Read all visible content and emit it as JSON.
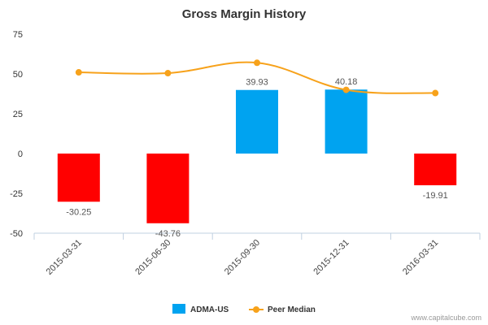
{
  "chart_data": {
    "type": "bar",
    "title": "Gross Margin History",
    "xlabel": "",
    "ylabel": "",
    "categories": [
      "2015-03-31",
      "2015-06-30",
      "2015-09-30",
      "2015-12-31",
      "2016-03-31"
    ],
    "yticks": [
      "75",
      "50",
      "25",
      "0",
      "-25",
      "-50"
    ],
    "ylim": [
      -50,
      75
    ],
    "series": [
      {
        "name": "ADMA-US",
        "kind": "bar",
        "values": [
          -30.25,
          -43.76,
          39.93,
          40.18,
          -19.91
        ],
        "labels": [
          "-30.25",
          "-43.76",
          "39.93",
          "40.18",
          "-19.91"
        ],
        "positive_color": "#00a3f0",
        "negative_color": "#ff0000"
      },
      {
        "name": "Peer Median",
        "kind": "line",
        "values": [
          51,
          50.5,
          57,
          40,
          38
        ],
        "color": "#f7a21b"
      }
    ],
    "legend_position": "bottom-center",
    "grid": false
  },
  "credit": "www.capitalcube.com"
}
